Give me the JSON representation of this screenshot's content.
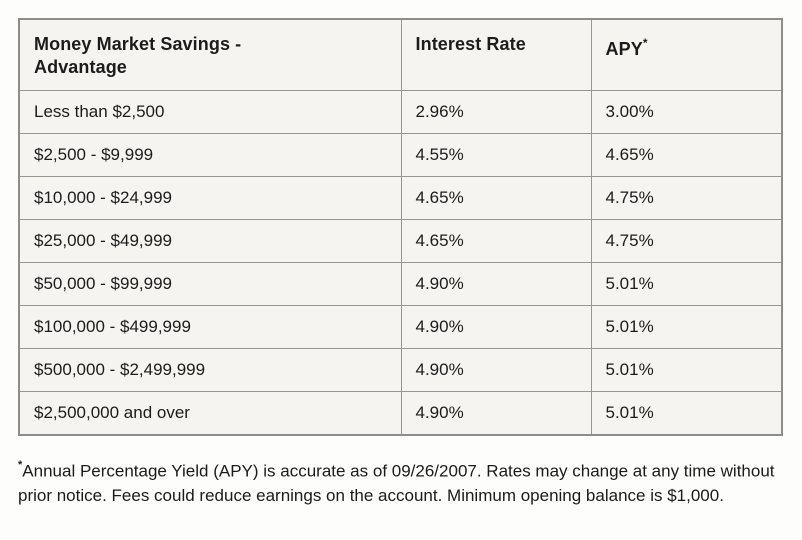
{
  "table": {
    "header": {
      "col1_line1": "Money Market Savings -",
      "col1_line2": "Advantage",
      "col2": "Interest Rate",
      "col3": "APY",
      "col3_sup": "*"
    },
    "rows": [
      {
        "tier": "Less than $2,500",
        "interest_rate": "2.96%",
        "apy": "3.00%"
      },
      {
        "tier": "$2,500 - $9,999",
        "interest_rate": "4.55%",
        "apy": "4.65%"
      },
      {
        "tier": "$10,000 - $24,999",
        "interest_rate": "4.65%",
        "apy": "4.75%"
      },
      {
        "tier": "$25,000 - $49,999",
        "interest_rate": "4.65%",
        "apy": "4.75%"
      },
      {
        "tier": "$50,000 - $99,999",
        "interest_rate": "4.90%",
        "apy": "5.01%"
      },
      {
        "tier": "$100,000 - $499,999",
        "interest_rate": "4.90%",
        "apy": "5.01%"
      },
      {
        "tier": "$500,000 - $2,499,999",
        "interest_rate": "4.90%",
        "apy": "5.01%"
      },
      {
        "tier": "$2,500,000 and over",
        "interest_rate": "4.90%",
        "apy": "5.01%"
      }
    ]
  },
  "footnote": {
    "marker": "*",
    "text": "Annual Percentage Yield (APY) is accurate as of 09/26/2007. Rates may change at any time without prior notice. Fees could reduce earnings on the account. Minimum opening balance is $1,000."
  },
  "colors": {
    "page_background": "#fdfdfb",
    "cell_background": "#f5f4f1",
    "outer_border": "#8d8d8a",
    "inner_border": "#98978f",
    "text": "#1c1c1c"
  }
}
